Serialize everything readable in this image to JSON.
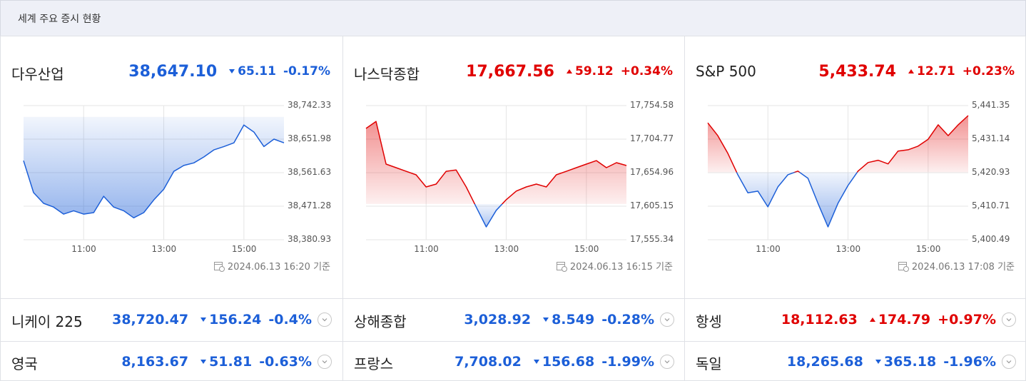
{
  "header": {
    "title": "세계 주요 증시 현황"
  },
  "colors": {
    "up": "#e00000",
    "down": "#1c5fd8"
  },
  "panels": [
    {
      "name": "다우산업",
      "price": "38,647.10",
      "change": "65.11",
      "direction": "down",
      "percent": "-0.17%",
      "updated": "2024.06.13 16:20 기준"
    },
    {
      "name": "나스닥종합",
      "price": "17,667.56",
      "change": "59.12",
      "direction": "up",
      "percent": "+0.34%",
      "updated": "2024.06.13 16:15 기준"
    },
    {
      "name": "S&P 500",
      "price": "5,433.74",
      "change": "12.71",
      "direction": "up",
      "percent": "+0.23%",
      "updated": "2024.06.13 17:08 기준"
    }
  ],
  "chart_data": [
    {
      "type": "area",
      "x": [
        "09:30",
        "09:45",
        "10:00",
        "10:15",
        "10:30",
        "10:45",
        "11:00",
        "11:15",
        "11:30",
        "11:45",
        "12:00",
        "12:15",
        "12:30",
        "12:45",
        "13:00",
        "13:15",
        "13:30",
        "13:45",
        "14:00",
        "14:15",
        "14:30",
        "14:45",
        "15:00",
        "15:15",
        "15:30",
        "15:45",
        "16:00"
      ],
      "values": [
        38594,
        38508,
        38479,
        38469,
        38450,
        38459,
        38450,
        38454,
        38498,
        38469,
        38459,
        38440,
        38454,
        38488,
        38517,
        38565,
        38581,
        38588,
        38604,
        38623,
        38632,
        38642,
        38690,
        38671,
        38632,
        38652,
        38642
      ],
      "xlim": [
        "09:30",
        "16:00"
      ],
      "xticks": [
        "11:00",
        "13:00",
        "15:00"
      ],
      "ylim": [
        38380.93,
        38742.33
      ],
      "yticks": [
        {
          "value": 38380.93,
          "label": "38,380.93"
        },
        {
          "value": 38471.28,
          "label": "38,471.28"
        },
        {
          "value": 38561.63,
          "label": "38,561.63"
        },
        {
          "value": 38651.98,
          "label": "38,651.98"
        },
        {
          "value": 38742.33,
          "label": "38,742.33"
        }
      ],
      "grid": true
    },
    {
      "type": "area",
      "x": [
        "09:30",
        "09:45",
        "10:00",
        "10:15",
        "10:30",
        "10:45",
        "11:00",
        "11:15",
        "11:30",
        "11:45",
        "12:00",
        "12:15",
        "12:30",
        "12:45",
        "13:00",
        "13:15",
        "13:30",
        "13:45",
        "14:00",
        "14:15",
        "14:30",
        "14:45",
        "15:00",
        "15:15",
        "15:30",
        "15:45",
        "16:00"
      ],
      "values": [
        17720.7,
        17731,
        17667.7,
        17662.4,
        17657,
        17651.8,
        17633.8,
        17638,
        17657,
        17659,
        17633.8,
        17604,
        17574.4,
        17599,
        17614.8,
        17627.6,
        17633.8,
        17638,
        17633.8,
        17651.8,
        17657,
        17662.4,
        17667.7,
        17672.9,
        17662.4,
        17669.8,
        17665.6
      ],
      "xlim": [
        "09:30",
        "16:00"
      ],
      "xticks": [
        "11:00",
        "13:00",
        "15:00"
      ],
      "ylim": [
        17555.34,
        17754.58
      ],
      "yticks": [
        {
          "value": 17555.34,
          "label": "17,555.34"
        },
        {
          "value": 17605.15,
          "label": "17,605.15"
        },
        {
          "value": 17654.96,
          "label": "17,654.96"
        },
        {
          "value": 17704.77,
          "label": "17,704.77"
        },
        {
          "value": 17754.58,
          "label": "17,754.58"
        }
      ],
      "grid": true
    },
    {
      "type": "area",
      "x": [
        "09:30",
        "09:45",
        "10:00",
        "10:15",
        "10:30",
        "10:45",
        "11:00",
        "11:15",
        "11:30",
        "11:45",
        "12:00",
        "12:15",
        "12:30",
        "12:45",
        "13:00",
        "13:15",
        "13:30",
        "13:45",
        "14:00",
        "14:15",
        "14:30",
        "14:45",
        "15:00",
        "15:15",
        "15:30",
        "15:45",
        "16:00"
      ],
      "values": [
        5436.1,
        5432.2,
        5426.8,
        5420.3,
        5414.8,
        5415.3,
        5410.5,
        5416.6,
        5420.3,
        5421.4,
        5419.2,
        5411.6,
        5404.4,
        5411.6,
        5417.0,
        5421.4,
        5424.0,
        5424.7,
        5423.6,
        5427.5,
        5427.9,
        5429.0,
        5431.1,
        5435.5,
        5432.2,
        5435.5,
        5438.3
      ],
      "xlim": [
        "09:30",
        "16:00"
      ],
      "xticks": [
        "11:00",
        "13:00",
        "15:00"
      ],
      "ylim": [
        5400.49,
        5441.35
      ],
      "yticks": [
        {
          "value": 5400.49,
          "label": "5,400.49"
        },
        {
          "value": 5410.71,
          "label": "5,410.71"
        },
        {
          "value": 5420.93,
          "label": "5,420.93"
        },
        {
          "value": 5431.14,
          "label": "5,431.14"
        },
        {
          "value": 5441.35,
          "label": "5,441.35"
        }
      ],
      "grid": true
    }
  ],
  "rows": [
    [
      {
        "name": "니케이 225",
        "price": "38,720.47",
        "change": "156.24",
        "direction": "down",
        "percent": "-0.4%"
      },
      {
        "name": "상해종합",
        "price": "3,028.92",
        "change": "8.549",
        "direction": "down",
        "percent": "-0.28%"
      },
      {
        "name": "항셍",
        "price": "18,112.63",
        "change": "174.79",
        "direction": "up",
        "percent": "+0.97%"
      }
    ],
    [
      {
        "name": "영국",
        "price": "8,163.67",
        "change": "51.81",
        "direction": "down",
        "percent": "-0.63%"
      },
      {
        "name": "프랑스",
        "price": "7,708.02",
        "change": "156.68",
        "direction": "down",
        "percent": "-1.99%"
      },
      {
        "name": "독일",
        "price": "18,265.68",
        "change": "365.18",
        "direction": "down",
        "percent": "-1.96%"
      }
    ]
  ]
}
